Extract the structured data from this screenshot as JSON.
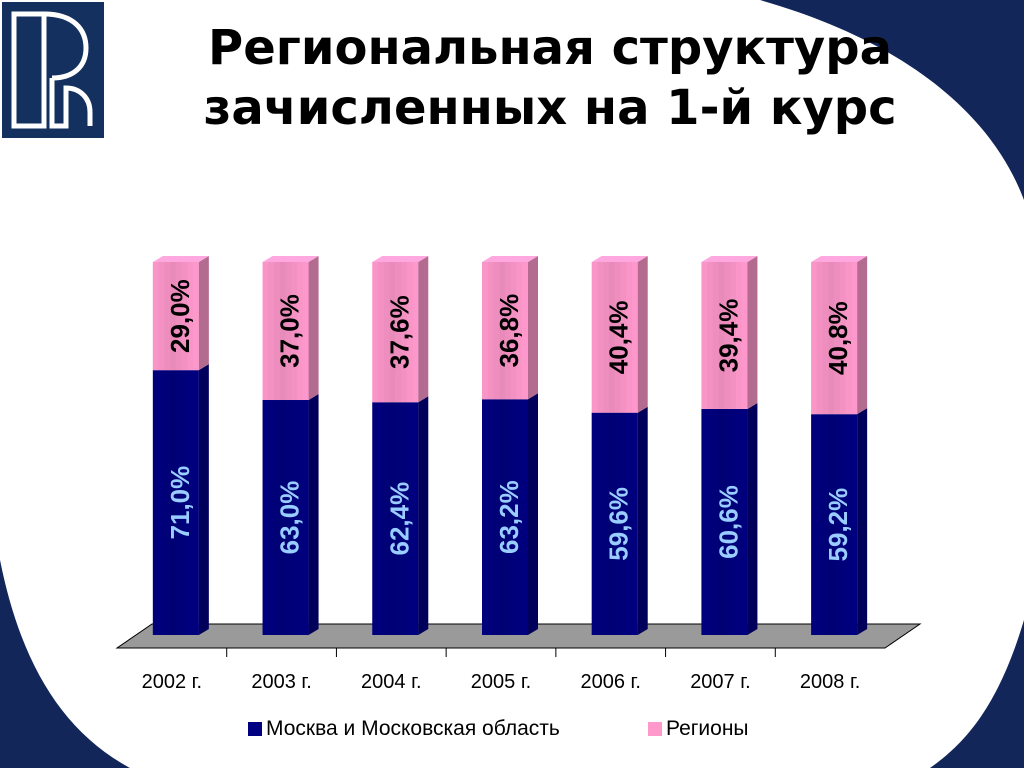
{
  "slide": {
    "title_line1": "Региональная структура",
    "title_line2": "зачисленных на 1-й курс",
    "colors": {
      "navy": "#12265a",
      "background": "#ffffff",
      "logo_blue": "#13305f"
    }
  },
  "logo": {
    "icon": "hse-logo-icon"
  },
  "chart_data": {
    "type": "bar",
    "stacked": true,
    "percent": true,
    "categories": [
      "2002 г.",
      "2003 г.",
      "2004 г.",
      "2005 г.",
      "2006 г.",
      "2007 г.",
      "2008 г."
    ],
    "series": [
      {
        "name": "Москва и Московская область",
        "color": "#000080",
        "label_color": "#99ccff",
        "values": [
          71.0,
          63.0,
          62.4,
          63.2,
          59.6,
          60.6,
          59.2
        ],
        "labels": [
          "71,0%",
          "63,0%",
          "62,4%",
          "63,2%",
          "59,6%",
          "60,6%",
          "59,2%"
        ]
      },
      {
        "name": "Регионы",
        "color": "#ff99cc",
        "label_color": "#000000",
        "values": [
          29.0,
          37.0,
          37.6,
          36.8,
          40.4,
          39.4,
          40.8
        ],
        "labels": [
          "29,0%",
          "37,0%",
          "37,6%",
          "36,8%",
          "40,4%",
          "39,4%",
          "40,8%"
        ]
      }
    ],
    "ylim": [
      0,
      100
    ],
    "legend_position": "bottom",
    "grid": false
  }
}
